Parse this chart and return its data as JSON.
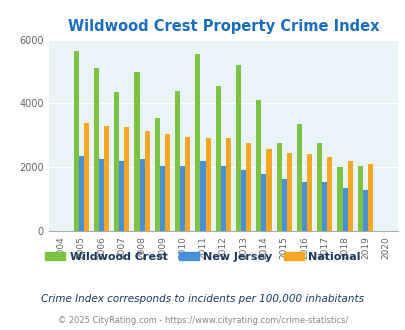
{
  "title": "Wildwood Crest Property Crime Index",
  "subtitle": "Crime Index corresponds to incidents per 100,000 inhabitants",
  "footer": "© 2025 CityRating.com - https://www.cityrating.com/crime-statistics/",
  "years": [
    2004,
    2005,
    2006,
    2007,
    2008,
    2009,
    2010,
    2011,
    2012,
    2013,
    2014,
    2015,
    2016,
    2017,
    2018,
    2019,
    2020
  ],
  "wildwood_crest": [
    0,
    5650,
    5100,
    4350,
    5000,
    3550,
    4400,
    5550,
    4550,
    5200,
    4100,
    2750,
    3350,
    2750,
    2000,
    2050,
    0
  ],
  "new_jersey": [
    0,
    2350,
    2250,
    2200,
    2250,
    2050,
    2050,
    2200,
    2025,
    1900,
    1775,
    1625,
    1525,
    1525,
    1350,
    1300,
    0
  ],
  "national": [
    0,
    3400,
    3300,
    3250,
    3150,
    3050,
    2950,
    2900,
    2900,
    2750,
    2575,
    2450,
    2400,
    2325,
    2200,
    2100,
    0
  ],
  "color_wildwood": "#7dc242",
  "color_nj": "#4a90d9",
  "color_national": "#f5a623",
  "ylim": [
    0,
    6000
  ],
  "yticks": [
    0,
    2000,
    4000,
    6000
  ],
  "bg_color": "#e8f4f8",
  "title_color": "#1a6dbd",
  "legend_color": "#1a3a5c",
  "subtitle_color": "#1a3a5c",
  "footer_color": "#888888",
  "footer_link_color": "#4a90d9",
  "bar_width": 0.25
}
